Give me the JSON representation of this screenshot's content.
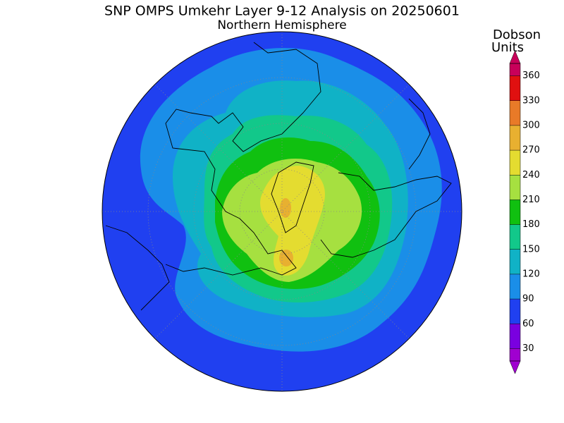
{
  "map": {
    "title": "SNP OMPS Umkehr Layer 9-12 Analysis on 20250601",
    "subtitle": "Northern Hemisphere"
  },
  "colorbar": {
    "label_lines": [
      "Dobson",
      "Units"
    ],
    "lim": [
      15,
      375
    ],
    "ticks": [
      30,
      60,
      90,
      120,
      150,
      180,
      210,
      240,
      270,
      300,
      330,
      360
    ],
    "colors": [
      "#a000d0",
      "#7a00e0",
      "#2040f0",
      "#1a8ee8",
      "#10b2c6",
      "#12c88a",
      "#10c010",
      "#a6e040",
      "#e4dc30",
      "#e8b030",
      "#e87a28",
      "#e01010",
      "#c8005a"
    ]
  }
}
